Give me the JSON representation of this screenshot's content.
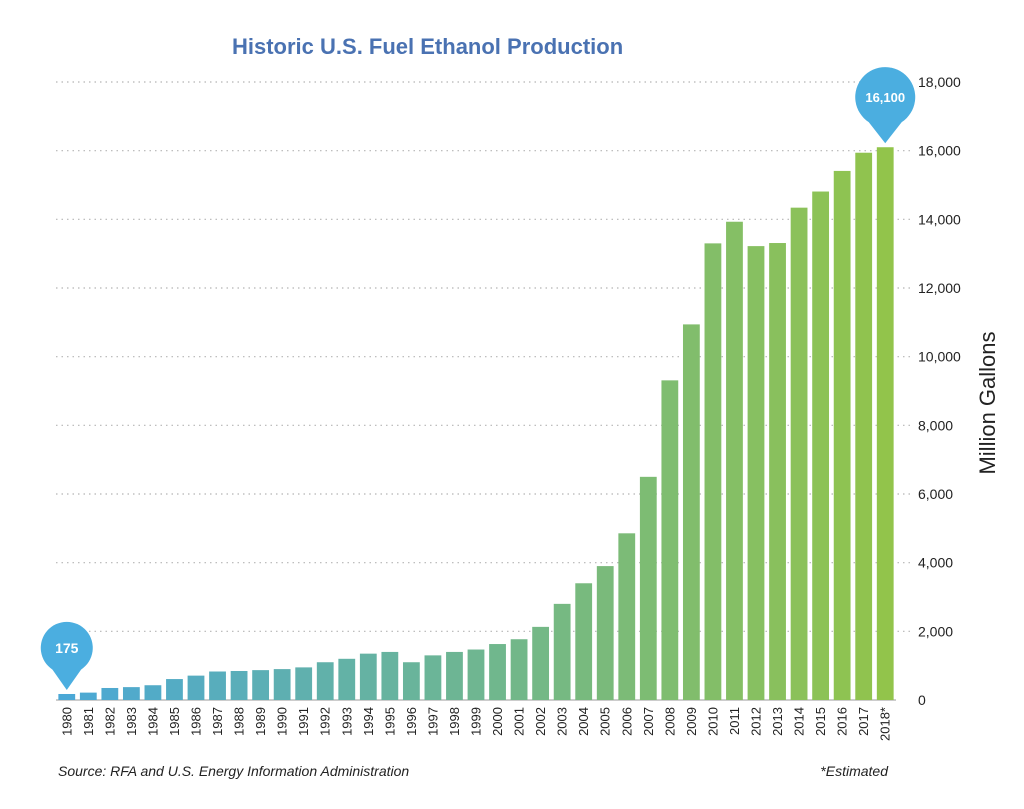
{
  "chart_data": {
    "type": "bar",
    "title": "Historic U.S. Fuel Ethanol Production",
    "ylabel": "Million Gallons",
    "source": "Source: RFA and U.S. Energy Information Administration",
    "footnote": "*Estimated",
    "ylim": [
      0,
      18000
    ],
    "yticks": [
      "0",
      "2,000",
      "4,000",
      "6,000",
      "8,000",
      "10,000",
      "12,000",
      "14,000",
      "16,000",
      "18,000"
    ],
    "ytick_values": [
      0,
      2000,
      4000,
      6000,
      8000,
      10000,
      12000,
      14000,
      16000,
      18000
    ],
    "grid": "horizontal-dotted",
    "categories": [
      "1980",
      "1981",
      "1982",
      "1983",
      "1984",
      "1985",
      "1986",
      "1987",
      "1988",
      "1989",
      "1990",
      "1991",
      "1992",
      "1993",
      "1994",
      "1995",
      "1996",
      "1997",
      "1998",
      "1999",
      "2000",
      "2001",
      "2002",
      "2003",
      "2004",
      "2005",
      "2006",
      "2007",
      "2008",
      "2009",
      "2010",
      "2011",
      "2012",
      "2013",
      "2014",
      "2015",
      "2016",
      "2017",
      "2018*"
    ],
    "values": [
      175,
      215,
      350,
      375,
      430,
      610,
      710,
      830,
      845,
      870,
      900,
      950,
      1100,
      1200,
      1350,
      1400,
      1100,
      1300,
      1400,
      1470,
      1630,
      1770,
      2130,
      2800,
      3400,
      3900,
      4855,
      6500,
      9310,
      10940,
      13300,
      13930,
      13220,
      13310,
      14340,
      14810,
      15410,
      15940,
      16100
    ],
    "callouts": [
      {
        "label": "175",
        "index": 0
      },
      {
        "label": "16,100",
        "index": 38
      }
    ],
    "colors": {
      "start": "#4ba8d6",
      "end": "#92c44b",
      "callout": "#4baee0",
      "title": "#4a72b2"
    }
  }
}
